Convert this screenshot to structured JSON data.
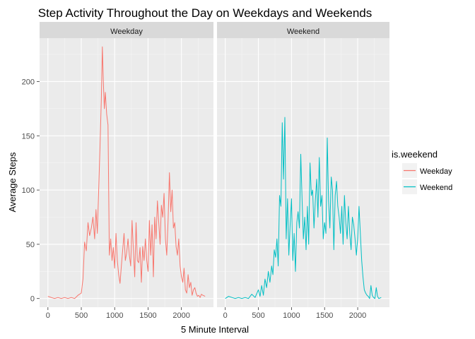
{
  "chart_data": {
    "type": "line",
    "title": "Step Activity Throughout the Day on Weekdays and Weekends",
    "xlabel": "5 Minute Interval",
    "ylabel": "Average Steps",
    "xlim": [
      -125,
      2480
    ],
    "ylim": [
      -8,
      240
    ],
    "x_ticks": [
      0,
      500,
      1000,
      1500,
      2000
    ],
    "x_tick_labels": [
      "0",
      "500",
      "1000",
      "1500",
      "2000"
    ],
    "y_ticks": [
      0,
      50,
      100,
      150,
      200
    ],
    "y_tick_labels": [
      "0",
      "50",
      "100",
      "150",
      "200"
    ],
    "grid": true,
    "legend": {
      "title": "is.weekend",
      "position": "right",
      "entries": [
        "Weekday",
        "Weekend"
      ]
    },
    "facets": [
      "Weekday",
      "Weekend"
    ],
    "colors": {
      "Weekday": "#F8766D",
      "Weekend": "#00BFC4"
    },
    "series": [
      {
        "name": "Weekday",
        "facet": "Weekday",
        "x": [
          0,
          50,
          100,
          150,
          200,
          250,
          300,
          350,
          400,
          450,
          500,
          525,
          550,
          575,
          600,
          625,
          650,
          675,
          700,
          720,
          740,
          760,
          780,
          800,
          815,
          830,
          845,
          860,
          880,
          900,
          920,
          940,
          960,
          980,
          1000,
          1020,
          1040,
          1060,
          1080,
          1100,
          1120,
          1140,
          1160,
          1180,
          1200,
          1220,
          1240,
          1260,
          1280,
          1300,
          1320,
          1340,
          1360,
          1380,
          1400,
          1420,
          1440,
          1460,
          1480,
          1500,
          1520,
          1540,
          1560,
          1580,
          1600,
          1620,
          1640,
          1660,
          1680,
          1700,
          1720,
          1740,
          1760,
          1780,
          1800,
          1820,
          1840,
          1860,
          1880,
          1900,
          1920,
          1940,
          1960,
          1980,
          2000,
          2020,
          2040,
          2060,
          2080,
          2100,
          2120,
          2140,
          2160,
          2180,
          2200,
          2220,
          2240,
          2260,
          2280,
          2300,
          2320,
          2355
        ],
        "values": [
          2,
          1,
          0,
          1,
          0,
          1,
          0,
          1,
          0,
          3,
          5,
          18,
          52,
          44,
          70,
          58,
          65,
          75,
          55,
          82,
          60,
          100,
          140,
          185,
          232,
          200,
          175,
          190,
          170,
          160,
          40,
          55,
          35,
          47,
          28,
          60,
          35,
          22,
          14,
          30,
          45,
          60,
          35,
          42,
          55,
          40,
          30,
          72,
          45,
          20,
          70,
          35,
          33,
          47,
          15,
          48,
          35,
          55,
          35,
          25,
          72,
          40,
          68,
          20,
          75,
          55,
          90,
          70,
          50,
          86,
          75,
          97,
          55,
          40,
          72,
          116,
          80,
          100,
          65,
          70,
          48,
          40,
          55,
          30,
          20,
          15,
          28,
          8,
          5,
          22,
          10,
          15,
          3,
          8,
          10,
          5,
          2,
          3,
          1,
          4,
          3,
          2
        ]
      },
      {
        "name": "Weekend",
        "facet": "Weekend",
        "x": [
          0,
          50,
          100,
          150,
          200,
          250,
          300,
          350,
          400,
          450,
          500,
          525,
          550,
          575,
          600,
          625,
          650,
          675,
          700,
          720,
          740,
          760,
          780,
          800,
          820,
          840,
          860,
          880,
          900,
          920,
          940,
          960,
          980,
          1000,
          1020,
          1040,
          1060,
          1080,
          1100,
          1120,
          1140,
          1160,
          1180,
          1200,
          1220,
          1240,
          1260,
          1280,
          1300,
          1320,
          1340,
          1360,
          1380,
          1400,
          1420,
          1440,
          1460,
          1480,
          1500,
          1520,
          1540,
          1560,
          1580,
          1600,
          1620,
          1640,
          1660,
          1680,
          1700,
          1720,
          1740,
          1760,
          1780,
          1800,
          1820,
          1840,
          1860,
          1880,
          1900,
          1920,
          1940,
          1960,
          1980,
          2000,
          2020,
          2040,
          2060,
          2080,
          2100,
          2120,
          2140,
          2160,
          2180,
          2200,
          2220,
          2240,
          2260,
          2280,
          2300,
          2320,
          2355
        ],
        "values": [
          0,
          2,
          1,
          0,
          1,
          0,
          1,
          0,
          4,
          1,
          8,
          2,
          12,
          3,
          18,
          10,
          25,
          15,
          30,
          22,
          45,
          38,
          55,
          30,
          95,
          85,
          162,
          110,
          167,
          55,
          92,
          40,
          68,
          92,
          35,
          60,
          25,
          70,
          80,
          65,
          133,
          90,
          55,
          75,
          45,
          85,
          50,
          125,
          95,
          100,
          65,
          90,
          110,
          75,
          130,
          85,
          95,
          55,
          70,
          60,
          148,
          90,
          65,
          112,
          100,
          45,
          95,
          108,
          85,
          75,
          60,
          85,
          50,
          95,
          70,
          55,
          85,
          60,
          45,
          75,
          68,
          55,
          40,
          55,
          85,
          60,
          35,
          20,
          8,
          5,
          3,
          2,
          0,
          12,
          3,
          1,
          0,
          10,
          2,
          0,
          1
        ]
      }
    ]
  }
}
